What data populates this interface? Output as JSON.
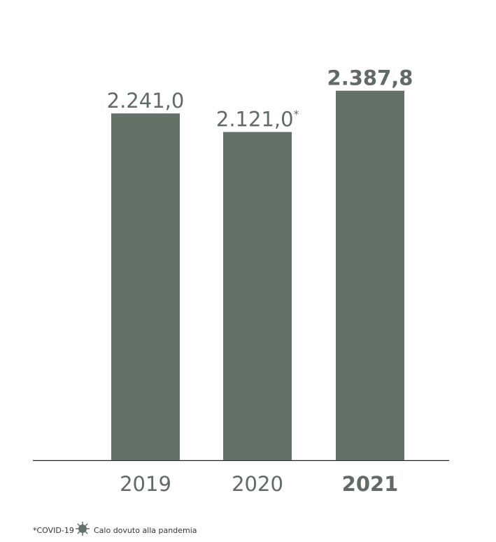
{
  "chart_data": {
    "type": "bar",
    "categories": [
      "2019",
      "2020",
      "2021"
    ],
    "values": [
      2241.0,
      2121.0,
      2387.8
    ],
    "value_labels": [
      "2.241,0",
      "2.121,0",
      "2.387,8"
    ],
    "color": "#637169",
    "ylim": [
      0,
      2400
    ],
    "highlight": "2021",
    "annotations": [
      {
        "category": "2020",
        "text": "*"
      }
    ],
    "footnote": {
      "marker_text": "*COVID-19",
      "text": "Calo dovuto alla pandemia"
    }
  }
}
